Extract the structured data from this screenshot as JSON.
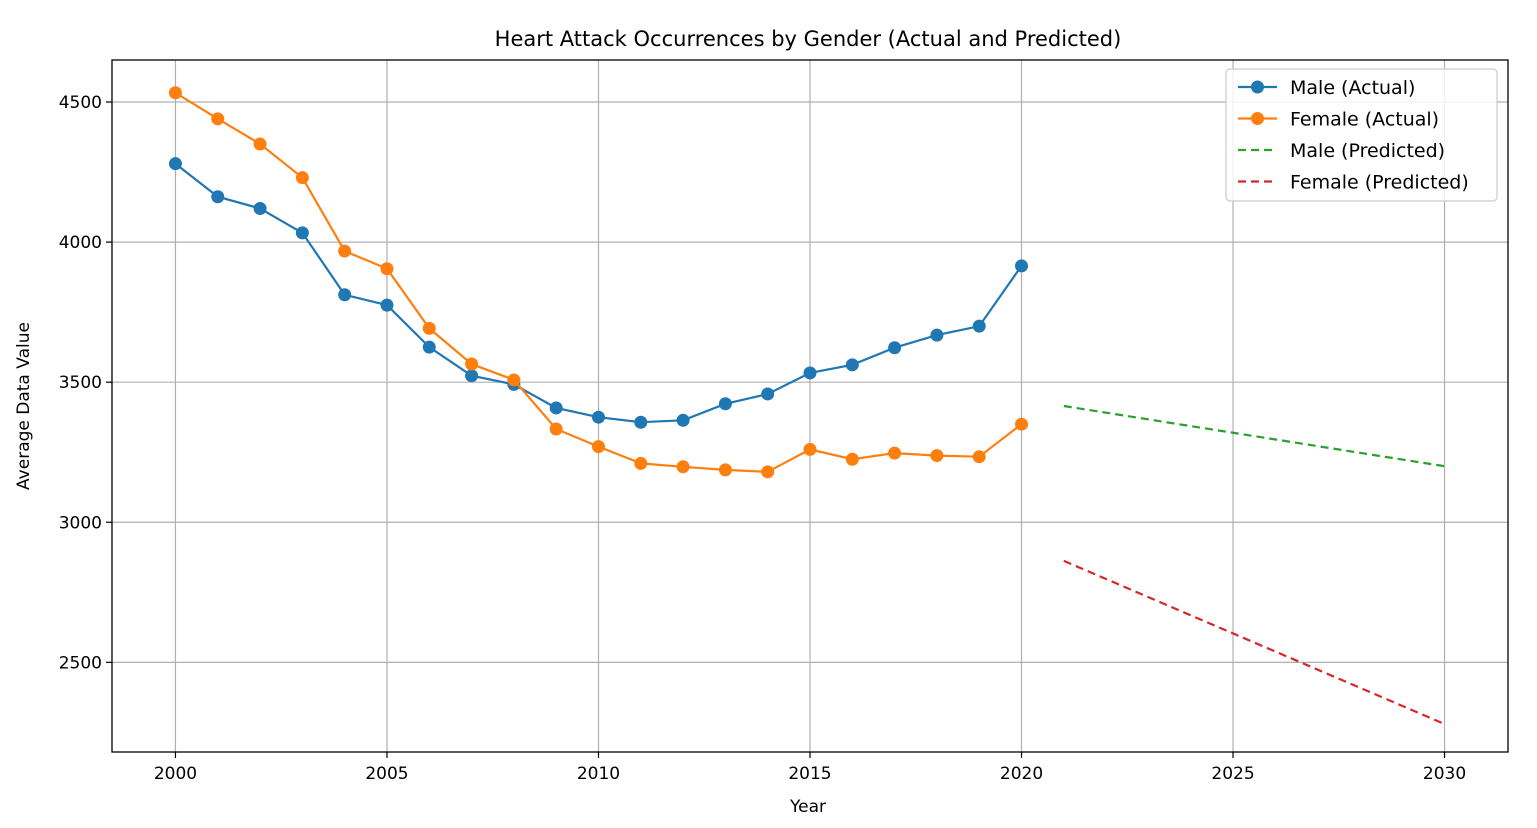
{
  "chart_data": {
    "type": "line",
    "title": "Heart Attack Occurrences by Gender (Actual and Predicted)",
    "xlabel": "Year",
    "ylabel": "Average Data Value",
    "xlim": [
      1998.5,
      2031.5
    ],
    "ylim": [
      2180,
      4650
    ],
    "xticks": [
      2000,
      2005,
      2010,
      2015,
      2020,
      2025,
      2030
    ],
    "yticks": [
      2500,
      3000,
      3500,
      4000,
      4500
    ],
    "grid": true,
    "legend_position": "top-right",
    "series": [
      {
        "name": "Male (Actual)",
        "style": "solid-markers",
        "color": "#1f77b4",
        "x": [
          2000,
          2001,
          2002,
          2003,
          2004,
          2005,
          2006,
          2007,
          2008,
          2009,
          2010,
          2011,
          2012,
          2013,
          2014,
          2015,
          2016,
          2017,
          2018,
          2019,
          2020
        ],
        "values": [
          4280,
          4162,
          4120,
          4033,
          3812,
          3775,
          3625,
          3523,
          3492,
          3408,
          3375,
          3357,
          3364,
          3423,
          3458,
          3533,
          3562,
          3623,
          3668,
          3700,
          3915
        ]
      },
      {
        "name": "Female (Actual)",
        "style": "solid-markers",
        "color": "#ff7f0e",
        "x": [
          2000,
          2001,
          2002,
          2003,
          2004,
          2005,
          2006,
          2007,
          2008,
          2009,
          2010,
          2011,
          2012,
          2013,
          2014,
          2015,
          2016,
          2017,
          2018,
          2019,
          2020
        ],
        "values": [
          4533,
          4440,
          4350,
          4230,
          3968,
          3905,
          3692,
          3565,
          3508,
          3333,
          3270,
          3210,
          3198,
          3187,
          3180,
          3260,
          3225,
          3247,
          3238,
          3234,
          3350
        ]
      },
      {
        "name": "Male (Predicted)",
        "style": "dashed",
        "color": "#2ca02c",
        "x": [
          2021,
          2030
        ],
        "values": [
          3415,
          3200
        ]
      },
      {
        "name": "Female (Predicted)",
        "style": "dashed",
        "color": "#d62728",
        "x": [
          2021,
          2030
        ],
        "values": [
          2862,
          2280
        ]
      }
    ]
  }
}
